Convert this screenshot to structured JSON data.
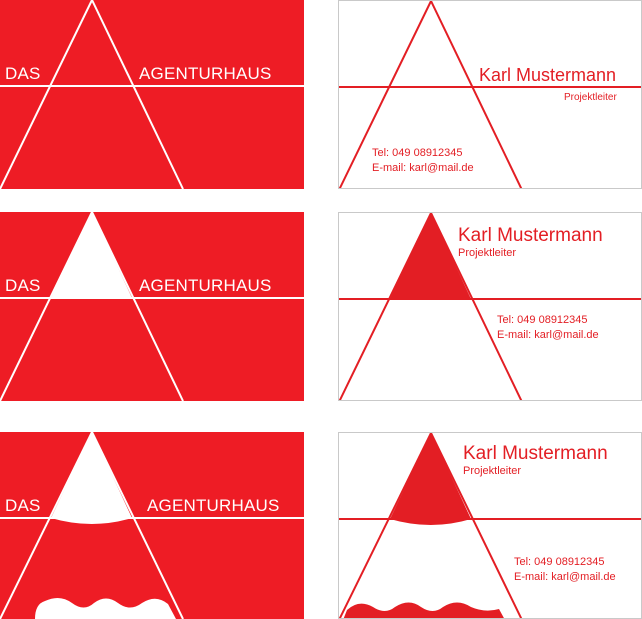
{
  "brand": {
    "left_word": "DAS",
    "right_word": "AGENTURHAUS"
  },
  "person": {
    "name": "Karl Mustermann",
    "title": "Projektleiter",
    "phone": "Tel: 049 08912345",
    "email": "E-mail: karl@mail.de"
  },
  "colors": {
    "brand_red": "#ee1c25",
    "text_red": "#e31e24",
    "paper": "#ffffff"
  }
}
